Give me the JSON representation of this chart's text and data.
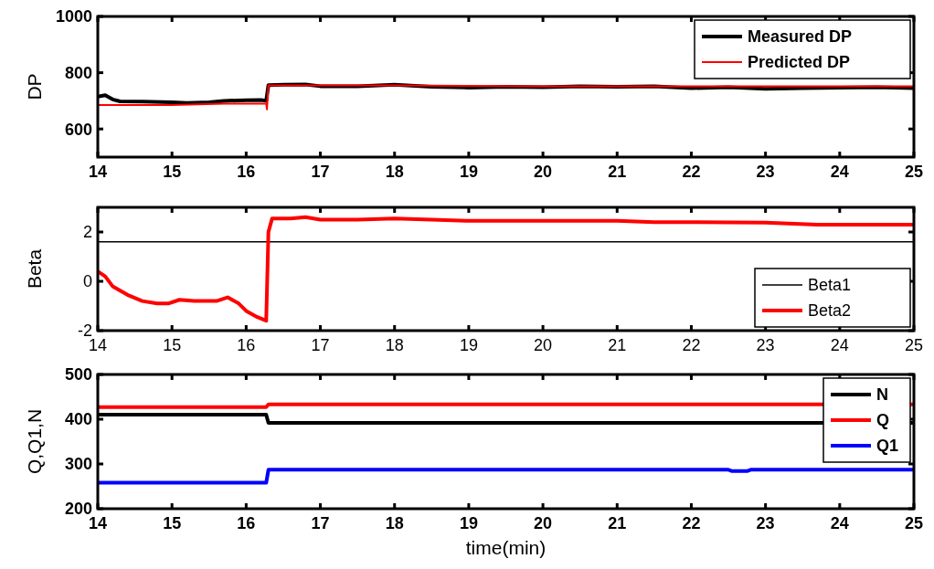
{
  "chart_data": [
    {
      "type": "line",
      "ylabel": "DP",
      "xlim": [
        14,
        25
      ],
      "xticks": [
        14,
        15,
        16,
        17,
        18,
        19,
        20,
        21,
        22,
        23,
        24,
        25
      ],
      "ylim": [
        500,
        1000
      ],
      "yticks": [
        600,
        800,
        1000
      ],
      "legend": "top right",
      "grid": false,
      "series": [
        {
          "name": "Measured DP",
          "color": "#000000",
          "x": [
            14,
            14.1,
            14.2,
            14.3,
            14.6,
            15,
            15.2,
            15.5,
            15.7,
            16,
            16.2,
            16.27,
            16.3,
            16.5,
            16.8,
            17,
            17.5,
            18,
            18.5,
            19,
            19.5,
            20,
            20.5,
            21,
            21.5,
            22,
            22.5,
            23,
            23.5,
            24,
            24.5,
            25
          ],
          "values": [
            715,
            720,
            705,
            698,
            697,
            695,
            692,
            695,
            700,
            702,
            703,
            700,
            756,
            757,
            758,
            752,
            752,
            757,
            750,
            747,
            750,
            748,
            752,
            750,
            752,
            745,
            748,
            743,
            745,
            747,
            748,
            745
          ]
        },
        {
          "name": "Predicted DP",
          "color": "#ff0000",
          "x": [
            14,
            15,
            15.7,
            16.27,
            16.28,
            16.3,
            17,
            18,
            19,
            20,
            21,
            22,
            23,
            24,
            25
          ],
          "values": [
            685,
            685,
            690,
            690,
            670,
            755,
            755,
            755,
            753,
            752,
            752,
            752,
            752,
            752,
            752
          ]
        }
      ]
    },
    {
      "type": "line",
      "ylabel": "Beta",
      "xlim": [
        14,
        25
      ],
      "xticks": [
        14,
        15,
        16,
        17,
        18,
        19,
        20,
        21,
        22,
        23,
        24,
        25
      ],
      "ylim": [
        -2,
        3
      ],
      "yticks": [
        -2,
        0,
        2
      ],
      "legend": "bottom right",
      "grid": false,
      "series": [
        {
          "name": "Beta1",
          "color": "#000000",
          "x": [
            14,
            25
          ],
          "values": [
            1.6,
            1.6
          ]
        },
        {
          "name": "Beta2",
          "color": "#ff0000",
          "x": [
            14,
            14.1,
            14.2,
            14.4,
            14.6,
            14.8,
            14.95,
            15.1,
            15.3,
            15.6,
            15.75,
            15.9,
            16,
            16.15,
            16.27,
            16.3,
            16.35,
            16.6,
            16.8,
            17,
            17.5,
            18,
            18.5,
            19,
            20,
            21,
            21.5,
            22,
            23,
            23.7,
            24,
            25
          ],
          "values": [
            0.4,
            0.2,
            -0.2,
            -0.55,
            -0.8,
            -0.9,
            -0.9,
            -0.75,
            -0.8,
            -0.8,
            -0.65,
            -0.9,
            -1.2,
            -1.45,
            -1.6,
            2,
            2.55,
            2.55,
            2.6,
            2.5,
            2.5,
            2.55,
            2.5,
            2.45,
            2.45,
            2.45,
            2.4,
            2.4,
            2.38,
            2.3,
            2.3,
            2.3
          ]
        }
      ]
    },
    {
      "type": "line",
      "xlabel": "time(min)",
      "ylabel": "Q,Q1,N",
      "xlim": [
        14,
        25
      ],
      "xticks": [
        14,
        15,
        16,
        17,
        18,
        19,
        20,
        21,
        22,
        23,
        24,
        25
      ],
      "ylim": [
        200,
        500
      ],
      "yticks": [
        200,
        300,
        400,
        500
      ],
      "legend": "top right",
      "grid": false,
      "series": [
        {
          "name": "N",
          "color": "#000000",
          "x": [
            14,
            16.27,
            16.3,
            25
          ],
          "values": [
            410,
            410,
            392,
            392
          ]
        },
        {
          "name": "Q",
          "color": "#ff0000",
          "x": [
            14,
            16.27,
            16.3,
            25
          ],
          "values": [
            427,
            427,
            433,
            433
          ]
        },
        {
          "name": "Q1",
          "color": "#0000ff",
          "x": [
            14,
            16.27,
            16.3,
            22.5,
            22.55,
            22.75,
            22.8,
            25
          ],
          "values": [
            258,
            258,
            287,
            287,
            284,
            284,
            287,
            287
          ]
        }
      ]
    }
  ]
}
